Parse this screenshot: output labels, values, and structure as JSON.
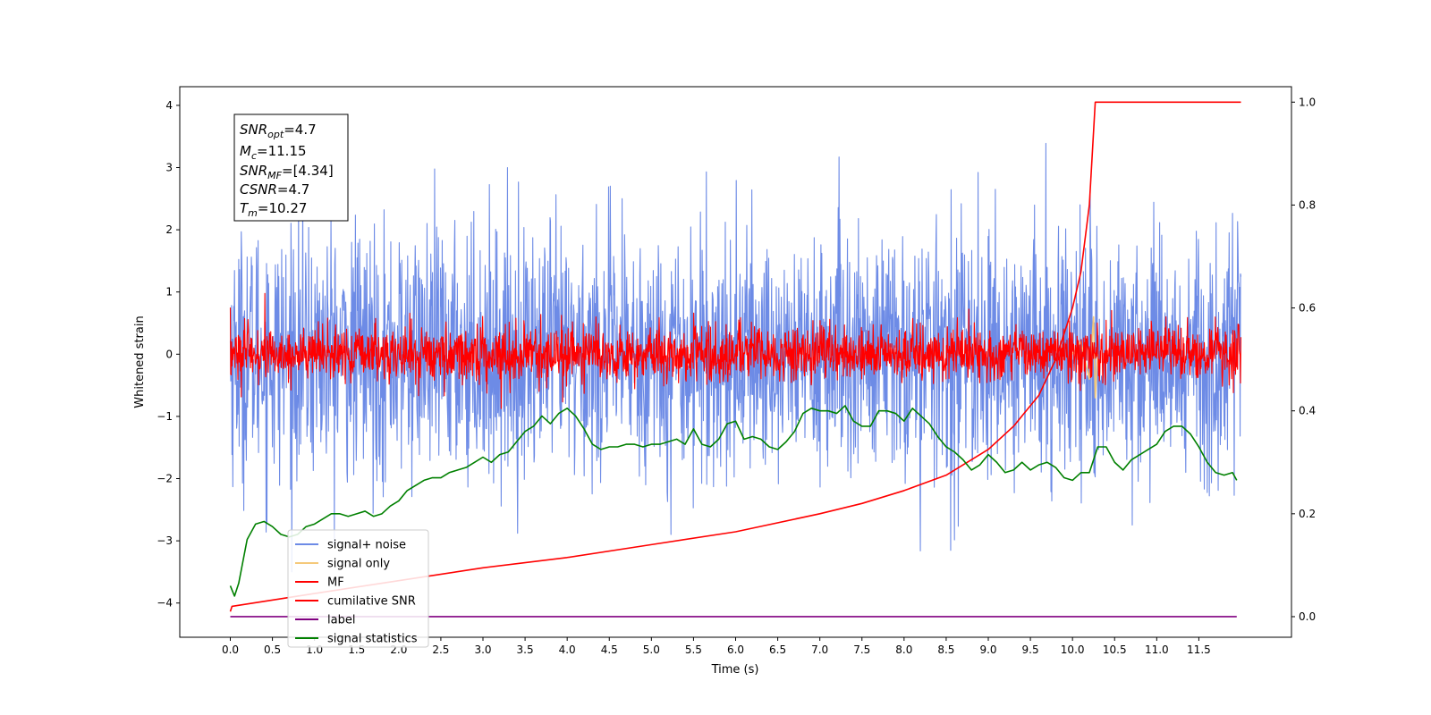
{
  "chart_data": {
    "type": "line",
    "xlabel": "Time (s)",
    "ylabel": "Whitened strain",
    "xlim": [
      -0.6,
      12.6
    ],
    "ylim": [
      -4.55,
      4.3
    ],
    "ylim_right": [
      -0.04,
      1.03
    ],
    "xticks": [
      "0.0",
      "0.5",
      "1.0",
      "1.5",
      "2.0",
      "2.5",
      "3.0",
      "3.5",
      "4.0",
      "4.5",
      "5.0",
      "5.5",
      "6.0",
      "6.5",
      "7.0",
      "7.5",
      "8.0",
      "8.5",
      "9.0",
      "9.5",
      "10.0",
      "10.5",
      "11.0",
      "11.5"
    ],
    "yticks": [
      "−4",
      "−3",
      "−2",
      "−1",
      "0",
      "1",
      "2",
      "3",
      "4"
    ],
    "yticks_right": [
      "0.0",
      "0.2",
      "0.4",
      "0.6",
      "0.8",
      "1.0"
    ],
    "info_box": {
      "snr_opt": "SNR",
      "snr_opt_sub": "opt",
      "snr_opt_val": "=4.7",
      "mc": "M",
      "mc_sub": "c",
      "mc_val": "=11.15",
      "snr_mf": "SNR",
      "snr_mf_sub": "MF",
      "snr_mf_val": "=[4.34]",
      "csnr": "CSNR",
      "csnr_val": "=4.7",
      "tm": "T",
      "tm_sub": "m",
      "tm_val": "=10.27"
    },
    "legend_position": "lower-left",
    "series": [
      {
        "name": "signal+ noise",
        "color": "#6d8be6",
        "axis": "left",
        "style": "noise",
        "amplitude": 1.0,
        "x_range": [
          0.0,
          12.0
        ]
      },
      {
        "name": "signal only",
        "color": "#f5c97a",
        "axis": "left",
        "x": [
          10.0,
          10.1,
          10.2,
          10.25,
          10.27,
          10.3
        ],
        "y": [
          0.0,
          0.2,
          -0.4,
          0.6,
          -0.7,
          0.0
        ]
      },
      {
        "name": "MF",
        "color": "#ff0000",
        "axis": "left",
        "style": "noise",
        "amplitude": 0.22,
        "x_range": [
          0.0,
          12.0
        ]
      },
      {
        "name": "cumilative SNR",
        "color": "#ff0000",
        "axis": "right",
        "x": [
          0.0,
          0.02,
          1.0,
          2.0,
          3.0,
          4.0,
          5.0,
          6.0,
          7.0,
          7.5,
          8.0,
          8.5,
          9.0,
          9.3,
          9.6,
          9.8,
          10.0,
          10.1,
          10.2,
          10.27,
          12.0
        ],
        "y": [
          0.01,
          0.02,
          0.045,
          0.07,
          0.095,
          0.115,
          0.14,
          0.165,
          0.2,
          0.22,
          0.245,
          0.275,
          0.325,
          0.37,
          0.43,
          0.5,
          0.6,
          0.67,
          0.8,
          1.0,
          1.0
        ]
      },
      {
        "name": "label",
        "color": "#800080",
        "axis": "right",
        "x": [
          0.0,
          11.95
        ],
        "y": [
          0.0,
          0.0
        ]
      },
      {
        "name": "signal statistics",
        "color": "#008000",
        "axis": "right",
        "x": [
          0.0,
          0.05,
          0.1,
          0.2,
          0.3,
          0.4,
          0.5,
          0.6,
          0.7,
          0.8,
          0.9,
          1.0,
          1.1,
          1.2,
          1.3,
          1.4,
          1.5,
          1.6,
          1.7,
          1.8,
          1.9,
          2.0,
          2.1,
          2.2,
          2.3,
          2.4,
          2.5,
          2.6,
          2.7,
          2.8,
          2.9,
          3.0,
          3.1,
          3.2,
          3.3,
          3.4,
          3.5,
          3.6,
          3.7,
          3.8,
          3.9,
          4.0,
          4.1,
          4.2,
          4.3,
          4.4,
          4.5,
          4.6,
          4.7,
          4.8,
          4.9,
          5.0,
          5.1,
          5.2,
          5.3,
          5.4,
          5.5,
          5.6,
          5.7,
          5.8,
          5.9,
          6.0,
          6.1,
          6.2,
          6.3,
          6.4,
          6.5,
          6.6,
          6.7,
          6.8,
          6.9,
          7.0,
          7.1,
          7.2,
          7.3,
          7.4,
          7.5,
          7.6,
          7.7,
          7.8,
          7.9,
          8.0,
          8.1,
          8.2,
          8.3,
          8.4,
          8.5,
          8.6,
          8.7,
          8.8,
          8.9,
          9.0,
          9.1,
          9.2,
          9.3,
          9.4,
          9.5,
          9.6,
          9.7,
          9.8,
          9.9,
          10.0,
          10.1,
          10.2,
          10.3,
          10.4,
          10.5,
          10.6,
          10.7,
          10.8,
          10.9,
          11.0,
          11.1,
          11.2,
          11.3,
          11.4,
          11.5,
          11.6,
          11.7,
          11.8,
          11.9,
          11.95
        ],
        "y": [
          0.06,
          0.04,
          0.065,
          0.15,
          0.18,
          0.185,
          0.175,
          0.16,
          0.155,
          0.16,
          0.175,
          0.18,
          0.19,
          0.2,
          0.2,
          0.195,
          0.2,
          0.205,
          0.195,
          0.2,
          0.215,
          0.225,
          0.245,
          0.255,
          0.265,
          0.27,
          0.27,
          0.28,
          0.285,
          0.29,
          0.3,
          0.31,
          0.3,
          0.315,
          0.32,
          0.34,
          0.36,
          0.37,
          0.39,
          0.375,
          0.395,
          0.405,
          0.39,
          0.365,
          0.335,
          0.325,
          0.33,
          0.33,
          0.335,
          0.335,
          0.33,
          0.335,
          0.335,
          0.34,
          0.345,
          0.335,
          0.365,
          0.335,
          0.33,
          0.345,
          0.375,
          0.38,
          0.345,
          0.35,
          0.345,
          0.33,
          0.325,
          0.34,
          0.36,
          0.395,
          0.405,
          0.4,
          0.4,
          0.395,
          0.41,
          0.38,
          0.37,
          0.37,
          0.4,
          0.4,
          0.395,
          0.38,
          0.405,
          0.39,
          0.375,
          0.35,
          0.33,
          0.32,
          0.305,
          0.285,
          0.295,
          0.315,
          0.3,
          0.28,
          0.285,
          0.3,
          0.285,
          0.295,
          0.3,
          0.29,
          0.27,
          0.265,
          0.28,
          0.28,
          0.33,
          0.33,
          0.3,
          0.285,
          0.305,
          0.315,
          0.325,
          0.335,
          0.36,
          0.37,
          0.37,
          0.355,
          0.33,
          0.3,
          0.28,
          0.275,
          0.28,
          0.265
        ]
      }
    ]
  }
}
